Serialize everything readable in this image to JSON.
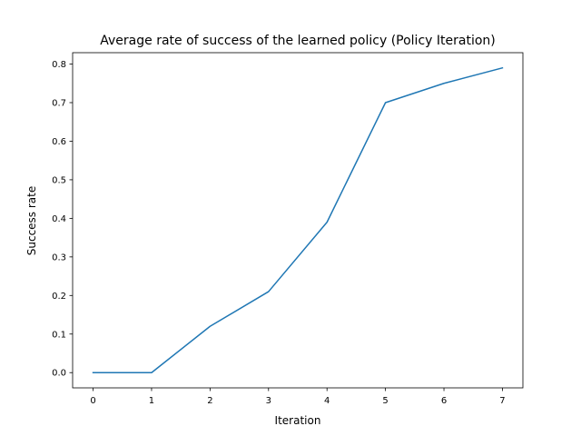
{
  "chart_data": {
    "type": "line",
    "title": "Average rate of success of the learned policy (Policy Iteration)",
    "xlabel": "Iteration",
    "ylabel": "Success rate",
    "x": [
      0,
      1,
      2,
      3,
      4,
      5,
      6,
      7
    ],
    "series": [
      {
        "values": [
          0.0,
          0.0,
          0.12,
          0.21,
          0.39,
          0.7,
          0.75,
          0.79
        ],
        "color": "#1f77b4"
      }
    ],
    "xlim": [
      -0.35,
      7.35
    ],
    "ylim": [
      -0.0395,
      0.8295
    ],
    "xticks": [
      "0",
      "1",
      "2",
      "3",
      "4",
      "5",
      "6",
      "7"
    ],
    "yticks": [
      "0.0",
      "0.1",
      "0.2",
      "0.3",
      "0.4",
      "0.5",
      "0.6",
      "0.7",
      "0.8"
    ],
    "grid": false,
    "legend": "none"
  }
}
